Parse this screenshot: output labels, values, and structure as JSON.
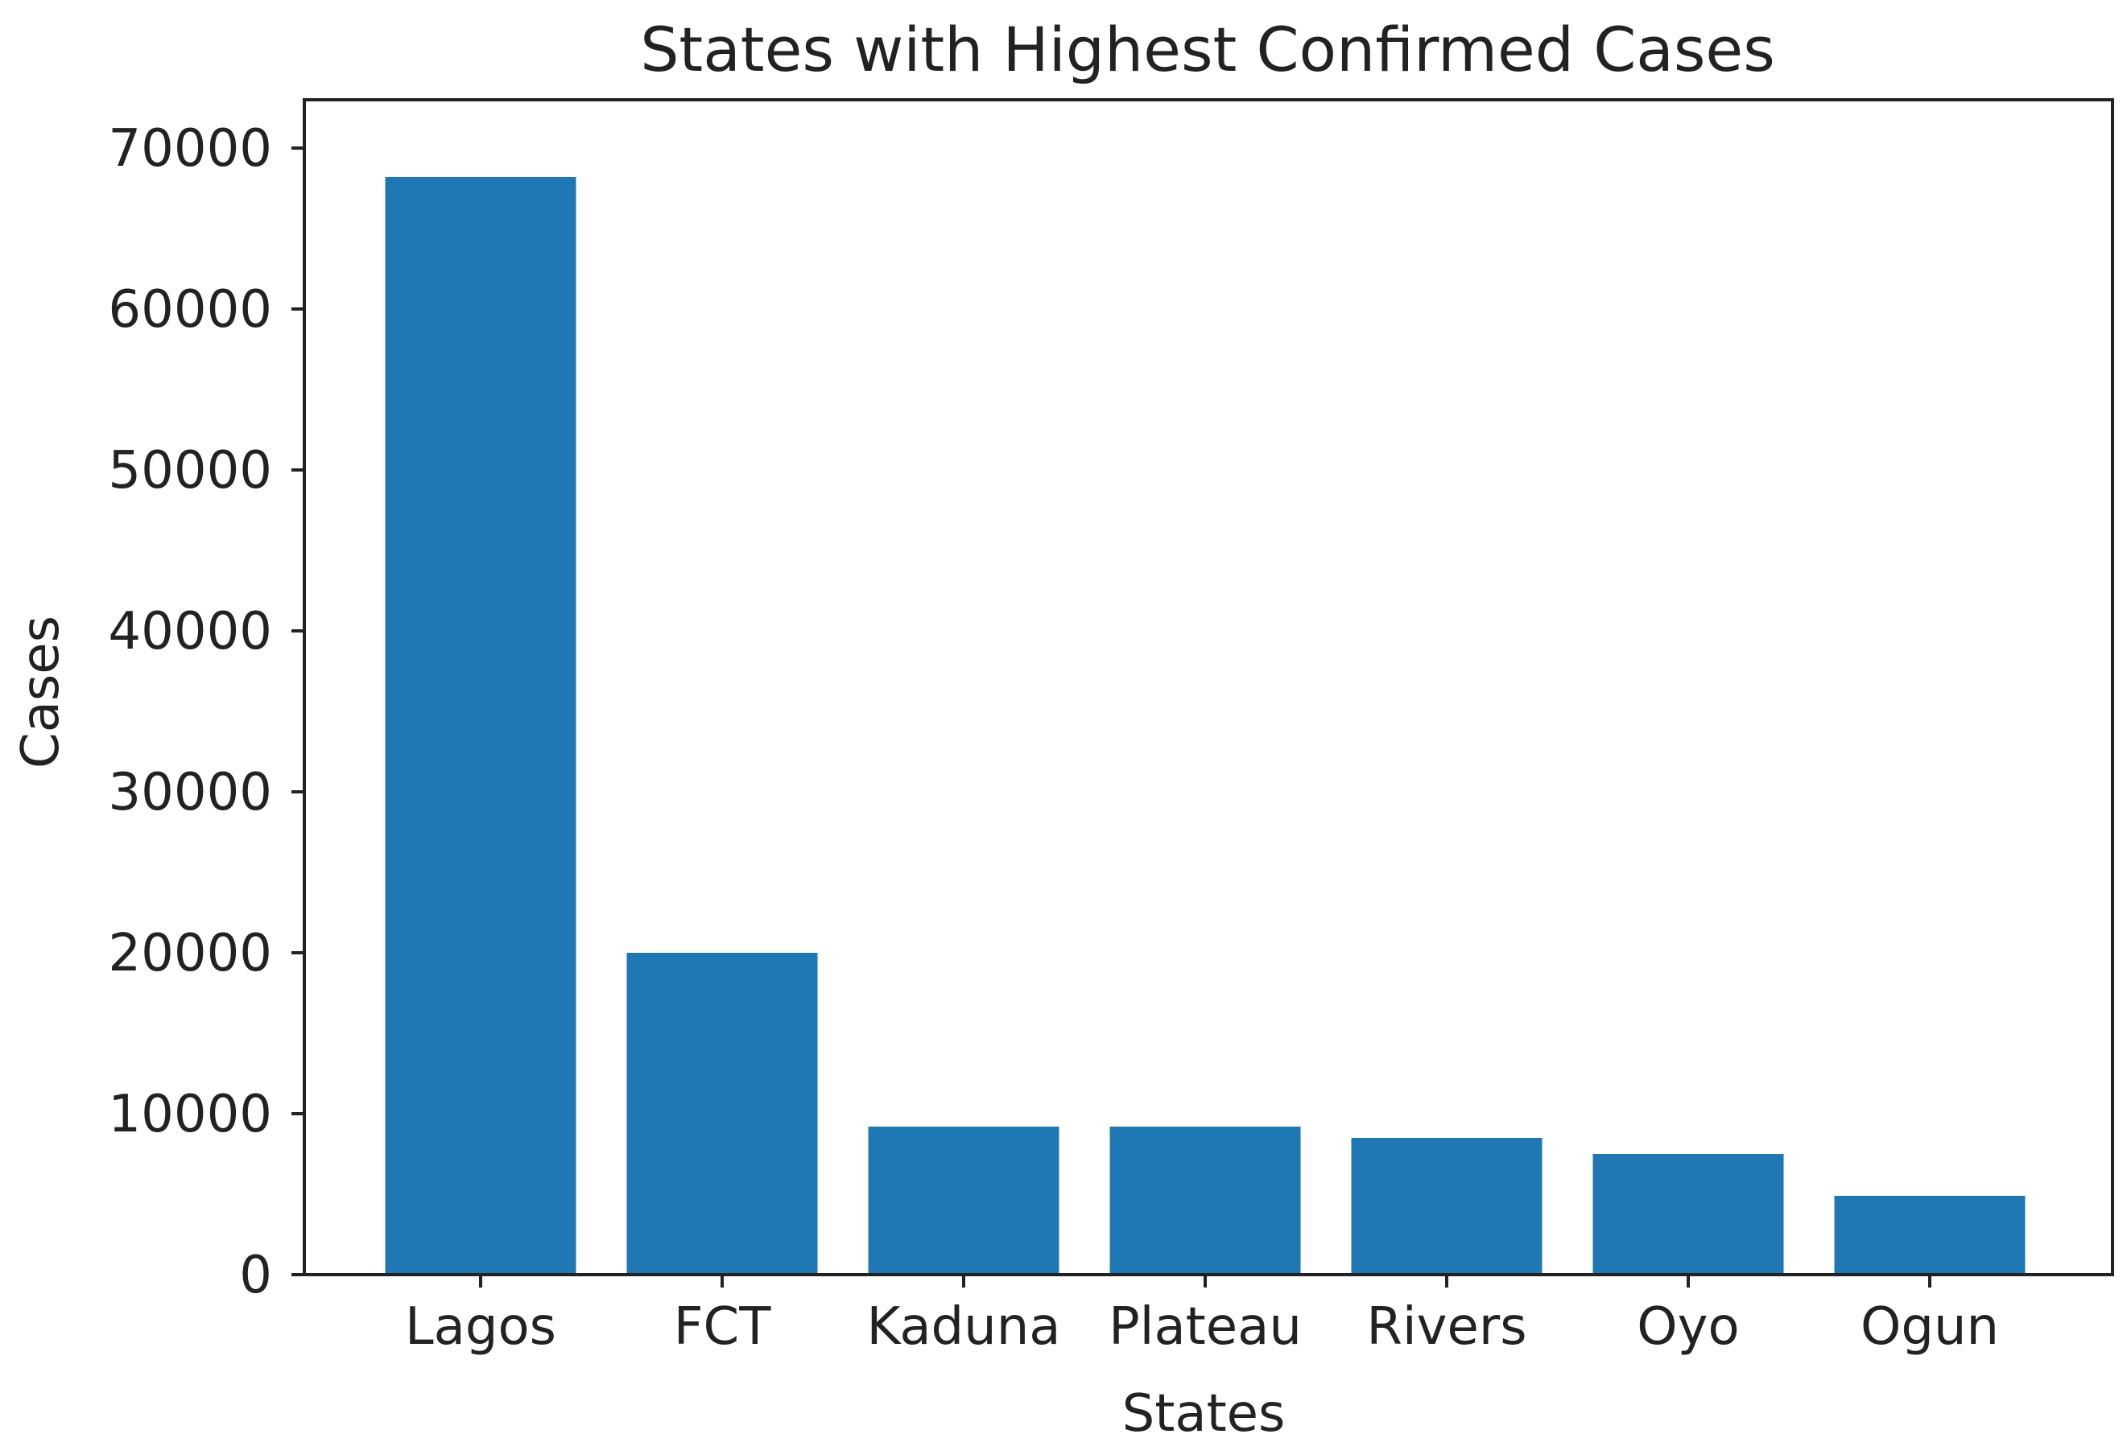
{
  "chart_data": {
    "type": "bar",
    "title": "States with Highest Confirmed Cases",
    "xlabel": "States",
    "ylabel": "Cases",
    "categories": [
      "Lagos",
      "FCT",
      "Kaduna",
      "Plateau",
      "Rivers",
      "Oyo",
      "Ogun"
    ],
    "values": [
      68200,
      20000,
      9200,
      9200,
      8500,
      7500,
      4900
    ],
    "ylim": [
      0,
      73000
    ],
    "yticks": [
      0,
      10000,
      20000,
      30000,
      40000,
      50000,
      60000,
      70000
    ],
    "grid": false,
    "bar_color": "#1f77b4"
  }
}
